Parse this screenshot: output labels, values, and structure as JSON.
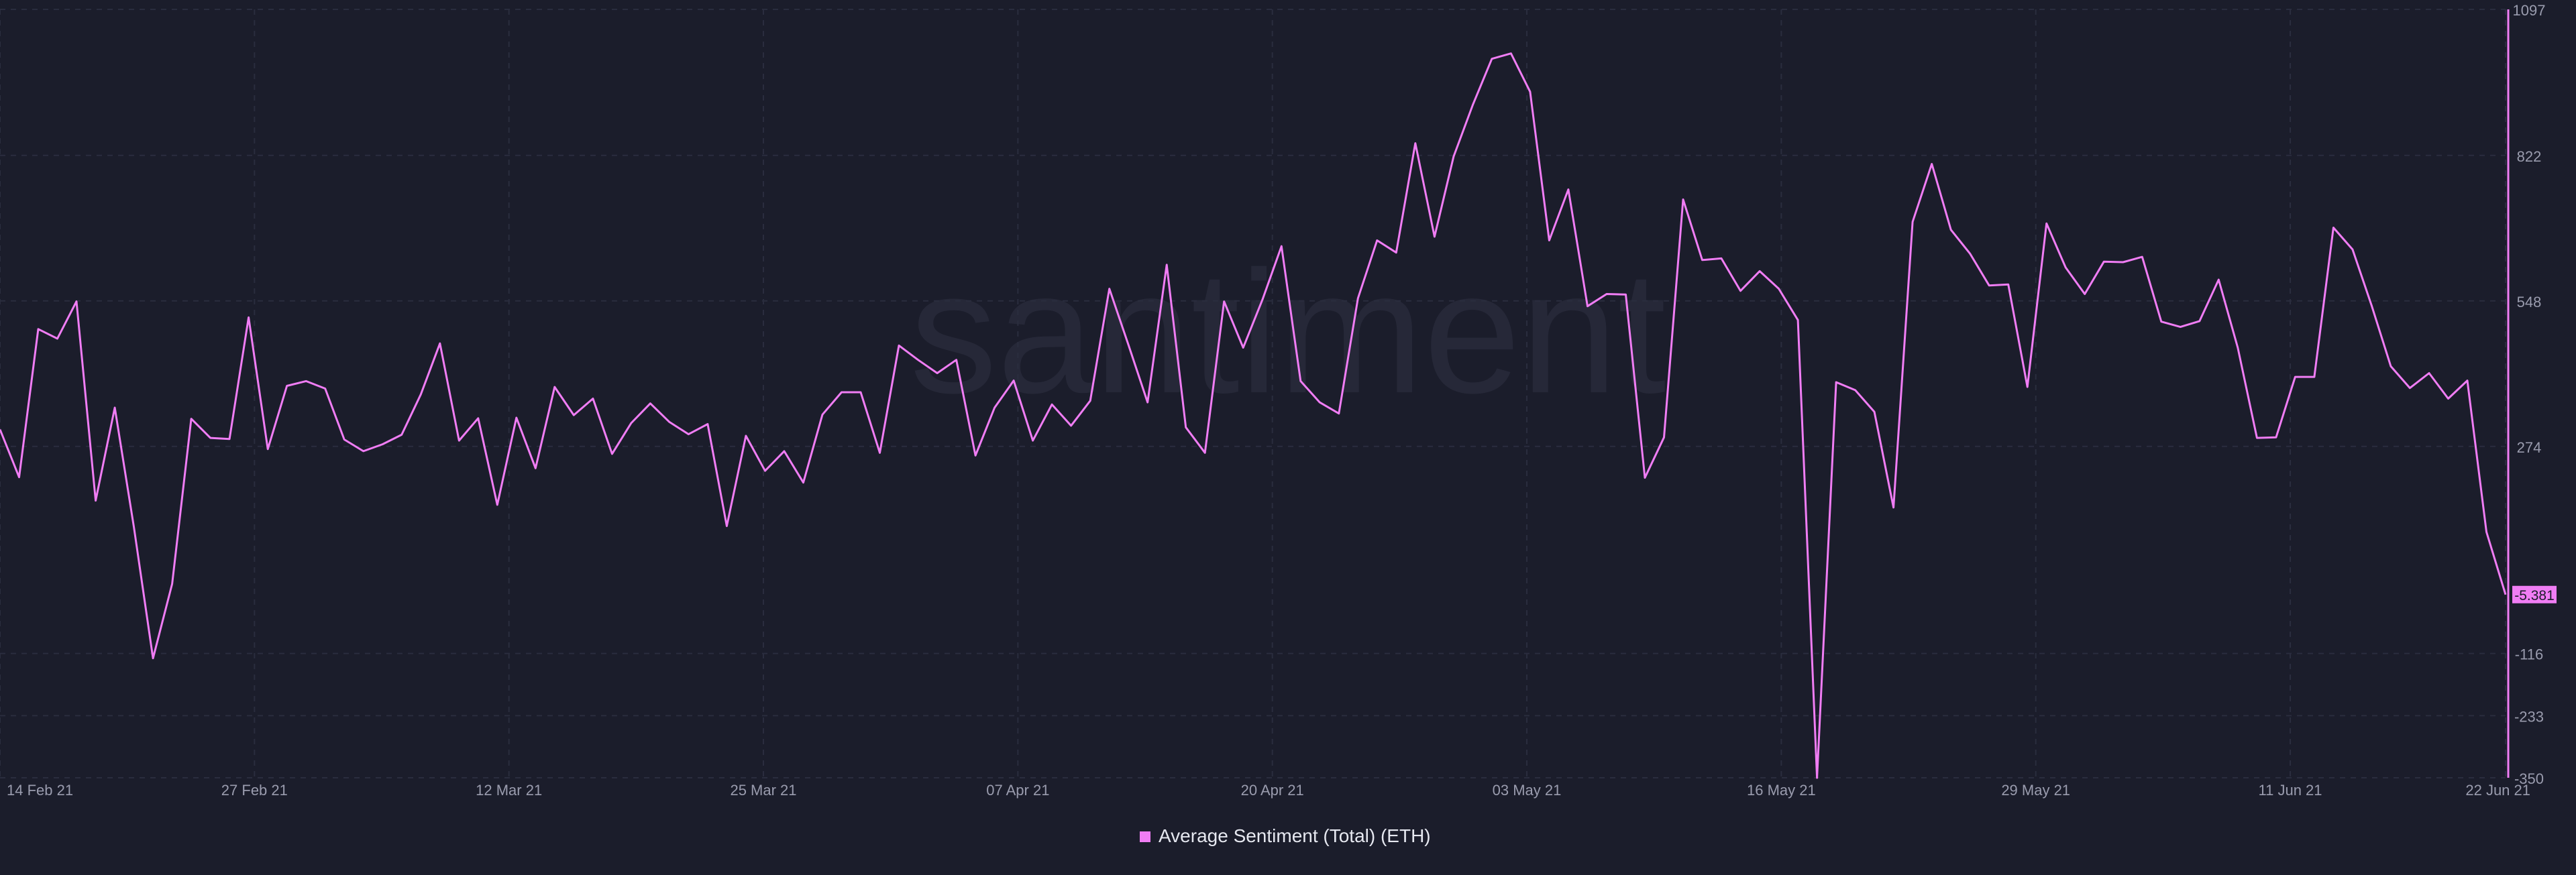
{
  "watermark": "santiment",
  "chart_data": {
    "type": "line",
    "x_start": "2021-02-14",
    "x_end": "2021-06-22",
    "x_tick_labels": [
      "14 Feb 21",
      "27 Feb 21",
      "12 Mar 21",
      "25 Mar 21",
      "07 Apr 21",
      "20 Apr 21",
      "03 May 21",
      "16 May 21",
      "29 May 21",
      "11 Jun 21",
      "22 Jun 21"
    ],
    "y_tick_labels": [
      "1097",
      "822",
      "548",
      "274",
      "-116",
      "-233",
      "-350"
    ],
    "ylim": [
      -350,
      1097
    ],
    "grid": true,
    "last_value_label": "-5.381",
    "series": [
      {
        "name": "Average Sentiment (Total) (ETH)",
        "color": "#f07df4",
        "values": [
          306,
          216,
          495,
          477,
          547,
          172,
          347,
          122,
          -125,
          15,
          326,
          290,
          288,
          517,
          269,
          388,
          397,
          383,
          287,
          265,
          278,
          296,
          372,
          468,
          285,
          327,
          164,
          328,
          233,
          386,
          333,
          364,
          260,
          318,
          355,
          320,
          297,
          316,
          124,
          294,
          228,
          265,
          206,
          334,
          376,
          376,
          262,
          464,
          437,
          412,
          437,
          257,
          347,
          398,
          285,
          353,
          313,
          360,
          571,
          465,
          357,
          616,
          310,
          262,
          547,
          460,
          550,
          651,
          397,
          357,
          336,
          553,
          662,
          639,
          845,
          669,
          820,
          917,
          1004,
          1014,
          942,
          662,
          758,
          538,
          561,
          560,
          215,
          291,
          739,
          625,
          628,
          567,
          604,
          571,
          512,
          -350,
          395,
          380,
          339,
          159,
          697,
          806,
          682,
          637,
          577,
          579,
          386,
          694,
          611,
          561,
          622,
          621,
          631,
          509,
          499,
          510,
          588,
          460,
          290,
          291,
          405,
          405,
          686,
          645,
          539,
          425,
          384,
          412,
          364,
          398,
          113,
          -5
        ]
      }
    ]
  }
}
